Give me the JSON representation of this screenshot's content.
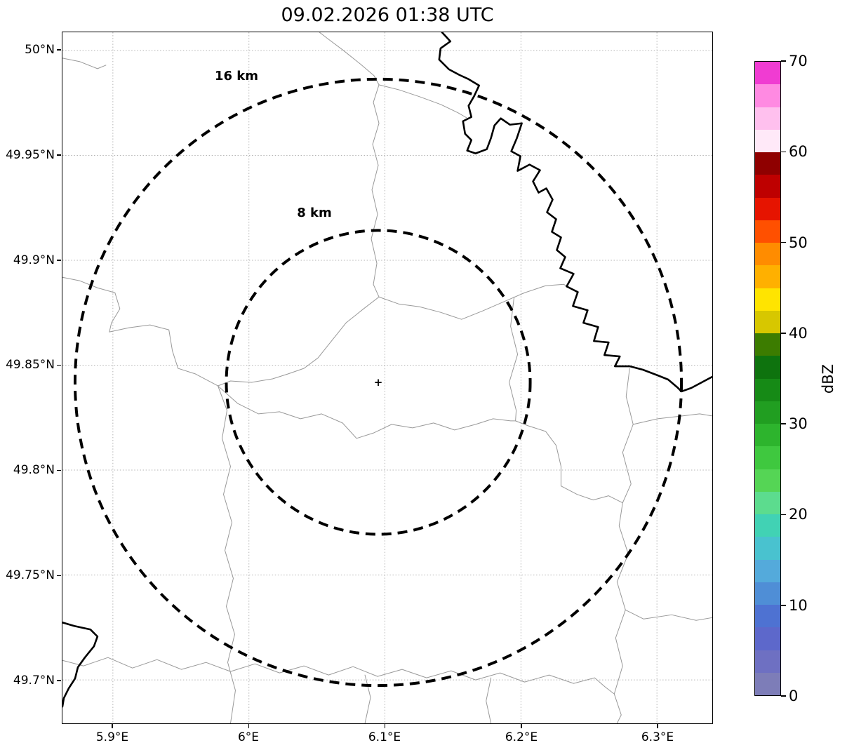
{
  "title": "09.02.2026 01:38 UTC",
  "map": {
    "center_marker": "+",
    "range_rings": [
      {
        "label": "16 km"
      },
      {
        "label": "8 km"
      }
    ],
    "x_axis": {
      "ticks": [
        "5.9°E",
        "6°E",
        "6.1°E",
        "6.2°E",
        "6.3°E"
      ]
    },
    "y_axis": {
      "ticks": [
        "50°N",
        "49.95°N",
        "49.9°N",
        "49.85°N",
        "49.8°N",
        "49.75°N",
        "49.7°N"
      ]
    }
  },
  "colorbar": {
    "label": "dBZ",
    "ticks": [
      "0",
      "10",
      "20",
      "30",
      "40",
      "50",
      "60",
      "70"
    ],
    "min": 0,
    "max": 70,
    "colors": [
      "#7d7db8",
      "#6e70c2",
      "#5d68cb",
      "#4e72d2",
      "#4f8ed6",
      "#54aadb",
      "#49c2cf",
      "#41d2b4",
      "#5cdc8e",
      "#55d555",
      "#3fc83f",
      "#2db42d",
      "#219e21",
      "#168a16",
      "#0e730e",
      "#3c7c00",
      "#d7c700",
      "#ffe400",
      "#ffb000",
      "#ff8c00",
      "#ff5000",
      "#e61400",
      "#be0000",
      "#8f0000",
      "#ffe9f8",
      "#ffc0ee",
      "#ff8ae2",
      "#f03cd2"
    ]
  },
  "chart_data": {
    "type": "map",
    "title": "09.02.2026 01:38 UTC",
    "x_ticks_deg_e": [
      5.9,
      6.0,
      6.1,
      6.2,
      6.3
    ],
    "y_ticks_deg_n": [
      50.0,
      49.95,
      49.9,
      49.85,
      49.8,
      49.75,
      49.7
    ],
    "xlim_deg_e": [
      5.86,
      6.34
    ],
    "ylim_deg_n": [
      49.69,
      50.01
    ],
    "range_rings_km": [
      8,
      16
    ],
    "radar_center": {
      "lon_deg_e": 6.095,
      "lat_deg_n": 49.843
    },
    "colorbar": {
      "label": "dBZ",
      "range": [
        0,
        70
      ]
    },
    "reflectivity_echoes": "none visible"
  }
}
